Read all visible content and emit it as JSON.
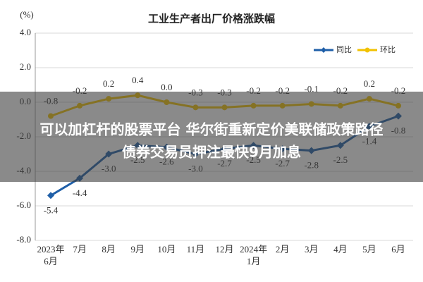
{
  "chart_data": {
    "type": "line",
    "title": "工业生产者出厂价格涨跌幅",
    "y_label": "(%)",
    "categories": [
      "2023年\n6月",
      "7月",
      "8月",
      "9月",
      "10月",
      "11月",
      "12月",
      "2024年\n1月",
      "2月",
      "3月",
      "4月",
      "5月",
      "6月"
    ],
    "series": [
      {
        "name": "同比",
        "color": "#1f5fa8",
        "marker": "diamond",
        "values": [
          -5.4,
          -4.4,
          -3.0,
          -2.5,
          -2.6,
          -3.0,
          -2.7,
          -2.5,
          -2.7,
          -2.8,
          -2.5,
          -1.4,
          -0.8
        ],
        "value_labels": [
          "-5.4",
          "-4.4",
          "-3.0",
          "-2.5",
          "-2.6",
          "-3.0",
          "-2.7",
          "-2.5",
          "-2.7",
          "-2.8",
          "-2.5",
          "-1.4",
          "-0.8"
        ]
      },
      {
        "name": "环比",
        "color": "#f2c200",
        "marker": "circle",
        "values": [
          -0.8,
          -0.2,
          0.2,
          0.4,
          0.0,
          -0.3,
          -0.3,
          -0.2,
          -0.2,
          -0.1,
          -0.2,
          0.2,
          -0.2
        ],
        "value_labels": [
          "-0.8",
          "-0.2",
          "0.2",
          "0.4",
          "0.0",
          "-0.3",
          "-0.3",
          "-0.2",
          "-0.2",
          "-0.1",
          "-0.2",
          "0.2",
          "-0.2"
        ]
      }
    ],
    "ylim": [
      -8,
      4
    ],
    "yticks": [
      {
        "value": 4,
        "label": "4.0"
      },
      {
        "value": 2,
        "label": "2.0"
      },
      {
        "value": 0,
        "label": "0.0"
      },
      {
        "value": -2,
        "label": "-2.0"
      },
      {
        "value": -4,
        "label": "-4.0"
      },
      {
        "value": -6,
        "label": "-6.0"
      },
      {
        "value": -8,
        "label": "-8.0"
      }
    ],
    "grid": true,
    "legend": "top-right"
  },
  "banner": {
    "lines": [
      "可以加杠杆的股票平台 华尔街重新定价美联储政策路径",
      "债券交易员押注最快9月加息"
    ]
  }
}
